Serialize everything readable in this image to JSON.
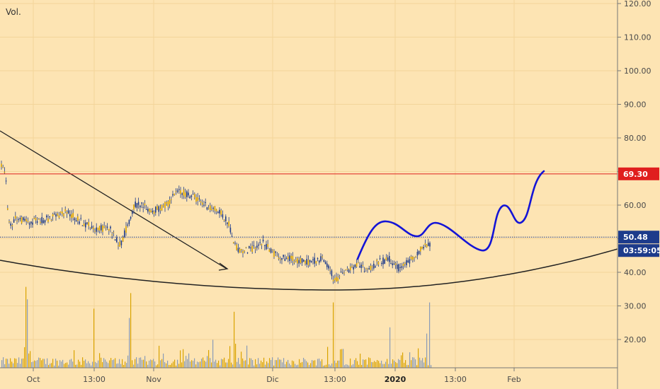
{
  "chart_data": {
    "type": "candlestick",
    "volume_label": "Vol.",
    "y_ticks": [
      "20.00",
      "30.00",
      "40.00",
      "50.00",
      "60.00",
      "70.00",
      "80.00",
      "90.00",
      "100.00",
      "110.00",
      "120.00"
    ],
    "ylim": [
      12,
      121
    ],
    "x_ticks": [
      "Oct",
      "13:00",
      "Nov",
      "Dic",
      "13:00",
      "2020",
      "13:00",
      "Feb"
    ],
    "bold_x_ticks": [
      "2020"
    ],
    "price_levels": [
      {
        "value": 69.3,
        "label": "69.30",
        "color": "#e01e1e",
        "style": "solid"
      },
      {
        "value": 50.48,
        "label": "50.48",
        "color": "#1d3b8b",
        "style": "dotted"
      }
    ],
    "countdown_label": "03:59:05",
    "price_path": [
      [
        0,
        73
      ],
      [
        8,
        70
      ],
      [
        10,
        60
      ],
      [
        14,
        53
      ],
      [
        20,
        56
      ],
      [
        40,
        55
      ],
      [
        70,
        56
      ],
      [
        95,
        58
      ],
      [
        115,
        55
      ],
      [
        135,
        53
      ],
      [
        155,
        53
      ],
      [
        170,
        48
      ],
      [
        180,
        54
      ],
      [
        190,
        60
      ],
      [
        200,
        60
      ],
      [
        215,
        58
      ],
      [
        235,
        60
      ],
      [
        250,
        64
      ],
      [
        270,
        63
      ],
      [
        290,
        60
      ],
      [
        310,
        58
      ],
      [
        322,
        55
      ],
      [
        332,
        48
      ],
      [
        340,
        46
      ],
      [
        355,
        47
      ],
      [
        370,
        49
      ],
      [
        390,
        45
      ],
      [
        410,
        44
      ],
      [
        430,
        43
      ],
      [
        455,
        44
      ],
      [
        465,
        42
      ],
      [
        472,
        37
      ],
      [
        480,
        39
      ],
      [
        495,
        41
      ],
      [
        505,
        42
      ],
      [
        520,
        41
      ],
      [
        535,
        43
      ],
      [
        550,
        44
      ],
      [
        565,
        41
      ],
      [
        580,
        44
      ],
      [
        595,
        47
      ],
      [
        605,
        48
      ]
    ],
    "volume_bars_description": "volume histogram bars along bottom panel (0 to about 31)",
    "colors": {
      "background": "#fde4b3",
      "candle": "#1d3b8b",
      "candle_alt": "#d9a300",
      "projection": "#1414d6",
      "support_line": "#222222",
      "resistance_line": "#e01e1e"
    }
  }
}
